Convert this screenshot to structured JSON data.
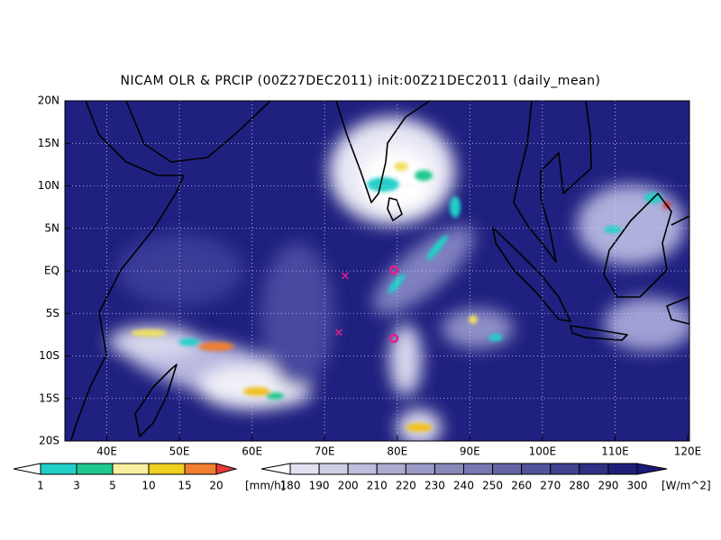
{
  "header": {
    "title": "NICAM OLR & PRCIP (00Z27DEC2011) init:00Z21DEC2011 (daily_mean)"
  },
  "map": {
    "lat_labels": [
      "20N",
      "15N",
      "10N",
      "5N",
      "EQ",
      "5S",
      "10S",
      "15S",
      "20S"
    ],
    "lon_labels": [
      "40E",
      "50E",
      "60E",
      "70E",
      "80E",
      "90E",
      "100E",
      "110E",
      "120E"
    ]
  },
  "precip_colorbar": {
    "labels": [
      "1",
      "3",
      "5",
      "10",
      "15",
      "20"
    ],
    "units": "[mm/h]"
  },
  "olr_colorbar": {
    "labels": [
      "180",
      "190",
      "200",
      "210",
      "220",
      "230",
      "240",
      "250",
      "260",
      "270",
      "280",
      "290",
      "300"
    ],
    "units": "[W/m^2]"
  }
}
